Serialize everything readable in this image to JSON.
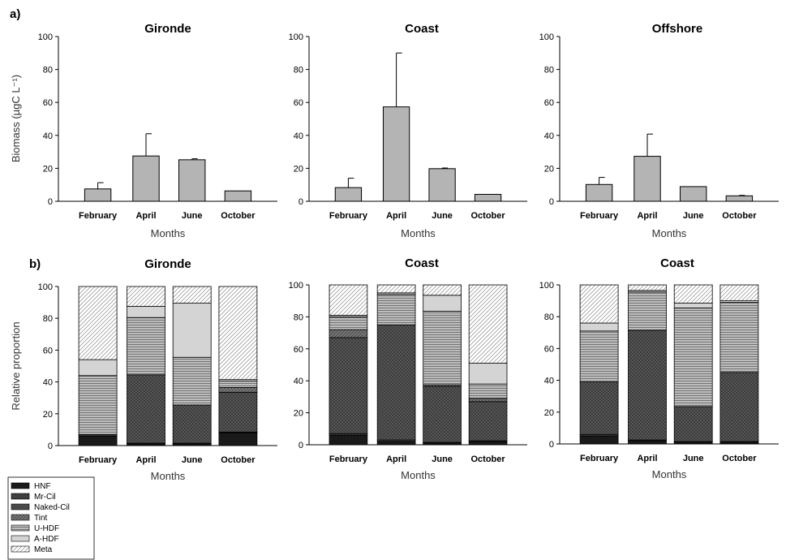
{
  "figure": {
    "panel_a_label": "a)",
    "panel_b_label": "b)"
  },
  "chart_data": [
    {
      "type": "bar",
      "panel": "a",
      "title": "Gironde",
      "xlabel": "Months",
      "ylabel": "Biomass (µgC L⁻¹)",
      "categories": [
        "February",
        "April",
        "June",
        "October"
      ],
      "values": [
        7.5,
        27.5,
        25.2,
        6.3
      ],
      "errors": [
        3.8,
        13.5,
        0.6,
        0
      ],
      "ylim": [
        0,
        100
      ],
      "yticks": [
        0,
        20,
        40,
        60,
        80,
        100
      ],
      "bar_color": "#b4b4b4"
    },
    {
      "type": "bar",
      "panel": "a",
      "title": "Coast",
      "xlabel": "Months",
      "ylabel": "",
      "categories": [
        "February",
        "April",
        "June",
        "October"
      ],
      "values": [
        8.3,
        57.3,
        19.8,
        4.2
      ],
      "errors": [
        5.7,
        32.7,
        0.4,
        0
      ],
      "ylim": [
        0,
        100
      ],
      "yticks": [
        0,
        20,
        40,
        60,
        80,
        100
      ],
      "bar_color": "#b4b4b4"
    },
    {
      "type": "bar",
      "panel": "a",
      "title": "Offshore",
      "xlabel": "Months",
      "ylabel": "",
      "categories": [
        "February",
        "April",
        "June",
        "October"
      ],
      "values": [
        10.2,
        27.3,
        8.9,
        3.3
      ],
      "errors": [
        4.3,
        13.5,
        0,
        0.3
      ],
      "ylim": [
        0,
        100
      ],
      "yticks": [
        0,
        20,
        40,
        60,
        80,
        100
      ],
      "bar_color": "#b4b4b4"
    },
    {
      "type": "bar",
      "stacked": true,
      "panel": "b",
      "title": "Gironde",
      "xlabel": "Months",
      "ylabel": "Relative proportion",
      "categories": [
        "February",
        "April",
        "June",
        "October"
      ],
      "ylim": [
        0,
        100
      ],
      "yticks": [
        0,
        20,
        40,
        60,
        80,
        100
      ],
      "series": [
        {
          "name": "HNF",
          "values": [
            6,
            1,
            1,
            8
          ]
        },
        {
          "name": "Mr-Cil",
          "values": [
            1,
            0.5,
            0.5,
            0.5
          ]
        },
        {
          "name": "Naked-Cil",
          "values": [
            0,
            43,
            24,
            25
          ]
        },
        {
          "name": "Tint",
          "values": [
            0,
            0,
            0,
            3
          ]
        },
        {
          "name": "U-HDF",
          "values": [
            37,
            36,
            30,
            4
          ]
        },
        {
          "name": "A-HDF",
          "values": [
            10,
            7,
            34,
            1
          ]
        },
        {
          "name": "Meta",
          "values": [
            46,
            12.5,
            10.5,
            58.5
          ]
        }
      ]
    },
    {
      "type": "bar",
      "stacked": true,
      "panel": "b",
      "title": "Coast",
      "xlabel": "Months",
      "ylabel": "",
      "categories": [
        "February",
        "April",
        "June",
        "October"
      ],
      "ylim": [
        0,
        100
      ],
      "yticks": [
        0,
        20,
        40,
        60,
        80,
        100
      ],
      "series": [
        {
          "name": "HNF",
          "values": [
            6,
            2,
            1,
            2
          ]
        },
        {
          "name": "Mr-Cil",
          "values": [
            1,
            1,
            0.5,
            0.5
          ]
        },
        {
          "name": "Naked-Cil",
          "values": [
            60,
            72,
            35,
            24.5
          ]
        },
        {
          "name": "Tint",
          "values": [
            5,
            0,
            1,
            2
          ]
        },
        {
          "name": "U-HDF",
          "values": [
            8,
            19,
            46,
            9
          ]
        },
        {
          "name": "A-HDF",
          "values": [
            1,
            1,
            10,
            13
          ]
        },
        {
          "name": "Meta",
          "values": [
            19,
            5,
            6.5,
            49
          ]
        }
      ]
    },
    {
      "type": "bar",
      "stacked": true,
      "panel": "b",
      "title": "Coast",
      "xlabel": "Months",
      "ylabel": "",
      "categories": [
        "February",
        "April",
        "June",
        "October"
      ],
      "ylim": [
        0,
        100
      ],
      "yticks": [
        0,
        20,
        40,
        60,
        80,
        100
      ],
      "series": [
        {
          "name": "HNF",
          "values": [
            5,
            2,
            1,
            1
          ]
        },
        {
          "name": "Mr-Cil",
          "values": [
            1,
            0.5,
            0.5,
            0.5
          ]
        },
        {
          "name": "Naked-Cil",
          "values": [
            33,
            69,
            22,
            43.5
          ]
        },
        {
          "name": "Tint",
          "values": [
            0,
            0,
            0,
            0
          ]
        },
        {
          "name": "U-HDF",
          "values": [
            32,
            24,
            62,
            44
          ]
        },
        {
          "name": "A-HDF",
          "values": [
            5,
            1,
            3,
            1
          ]
        },
        {
          "name": "Meta",
          "values": [
            24,
            3.5,
            11.5,
            10
          ]
        }
      ]
    }
  ],
  "legend": {
    "items": [
      {
        "label": "HNF",
        "pattern": "hnf"
      },
      {
        "label": "Mr-Cil",
        "pattern": "mrcil"
      },
      {
        "label": "Naked-Cil",
        "pattern": "naked"
      },
      {
        "label": "Tint",
        "pattern": "tint"
      },
      {
        "label": "U-HDF",
        "pattern": "uhdf"
      },
      {
        "label": "A-HDF",
        "pattern": "ahdf"
      },
      {
        "label": "Meta",
        "pattern": "meta"
      }
    ]
  }
}
